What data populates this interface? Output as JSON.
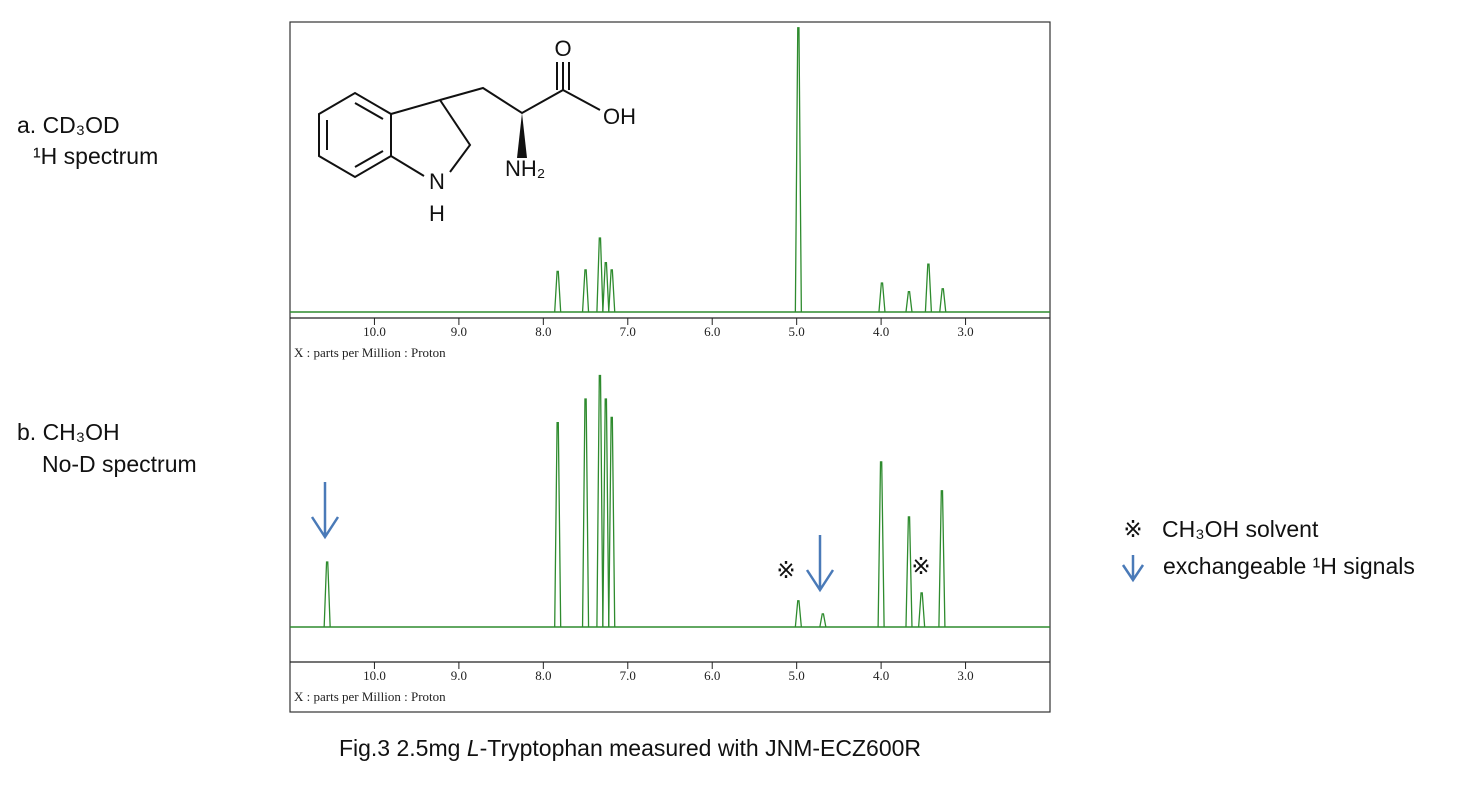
{
  "figure": {
    "caption": [
      "Fig.3 2.5mg ",
      "L",
      "-Tryptophan measured with JNM-ECZ600R"
    ],
    "legend": [
      {
        "symbol": "※",
        "label": "CH₃OH solvent",
        "color": "#a0403a"
      },
      {
        "label": "exchangeable ¹H signals",
        "color": "#4a7ab8"
      }
    ],
    "structure": {
      "atoms": [
        "O",
        "OH",
        "NH₂",
        "N",
        "H"
      ]
    }
  },
  "chart_data": [
    {
      "type": "spectrum",
      "label": [
        "a. CD₃OD",
        "¹H spectrum"
      ],
      "x": [
        7.83,
        7.5,
        7.33,
        7.26,
        7.19,
        4.98,
        3.99,
        3.67,
        3.44,
        3.27
      ],
      "values": [
        14,
        14.5,
        25.5,
        17,
        14.5,
        98,
        10,
        7,
        16.5,
        8
      ],
      "color": "#2e8b2e",
      "xlim": [
        11.0,
        2.0
      ],
      "ylim": [
        0,
        100
      ],
      "xticks": [
        {
          "value": 10,
          "label": "10.0"
        },
        {
          "value": 9,
          "label": "9.0"
        },
        {
          "value": 8,
          "label": "8.0"
        },
        {
          "value": 7,
          "label": "7.0"
        },
        {
          "value": 6,
          "label": "6.0"
        },
        {
          "value": 5,
          "label": "5.0"
        },
        {
          "value": 4,
          "label": "4.0"
        },
        {
          "value": 3,
          "label": "3.0"
        }
      ],
      "xlabel": "X : parts per Million : Proton"
    },
    {
      "type": "spectrum",
      "label": [
        "b. CH₃OH",
        "No-D spectrum"
      ],
      "x": [
        10.56,
        7.83,
        7.5,
        7.33,
        7.26,
        7.19,
        4.98,
        4.69,
        4.0,
        3.67,
        3.52,
        3.28
      ],
      "values": [
        24.8,
        78,
        87,
        96,
        87,
        80,
        10,
        5,
        63,
        42,
        13,
        52
      ],
      "color": "#2e8b2e",
      "xlim": [
        11.0,
        2.0
      ],
      "ylim": [
        0,
        100
      ],
      "xticks": [
        {
          "value": 10,
          "label": "10.0"
        },
        {
          "value": 9,
          "label": "9.0"
        },
        {
          "value": 8,
          "label": "8.0"
        },
        {
          "value": 7,
          "label": "7.0"
        },
        {
          "value": 6,
          "label": "6.0"
        },
        {
          "value": 5,
          "label": "5.0"
        },
        {
          "value": 4,
          "label": "4.0"
        },
        {
          "value": 3,
          "label": "3.0"
        }
      ],
      "xlabel": "X : parts per Million : Proton",
      "annotations": [
        "※",
        "※"
      ]
    }
  ]
}
